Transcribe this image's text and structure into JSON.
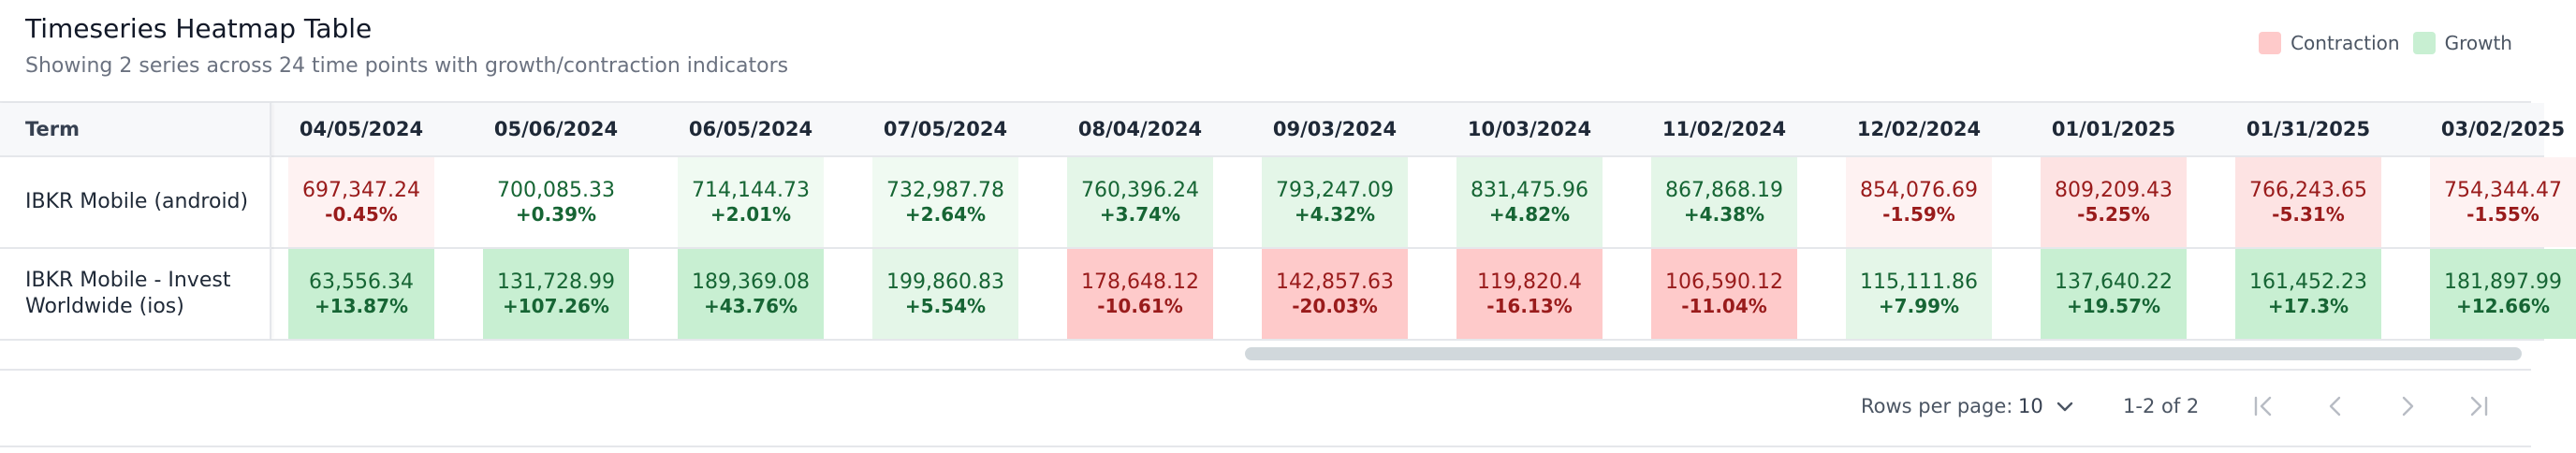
{
  "header": {
    "title": "Timeseries Heatmap Table",
    "subtitle": "Showing 2 series across 24 time points with growth/contraction indicators"
  },
  "legend": [
    {
      "label": "Contraction",
      "color": "#fecaca"
    },
    {
      "label": "Growth",
      "color": "#c8efd2"
    }
  ],
  "table": {
    "term_header": "Term",
    "dates": [
      "04/05/2024",
      "05/06/2024",
      "06/05/2024",
      "07/05/2024",
      "08/04/2024",
      "09/03/2024",
      "10/03/2024",
      "11/02/2024",
      "12/02/2024",
      "01/01/2025",
      "01/31/2025",
      "03/02/2025"
    ],
    "rows": [
      {
        "term": "IBKR Mobile (android)",
        "cells": [
          {
            "value": "697,347.24",
            "change": "-0.45%",
            "trend": "down",
            "intensity": "light"
          },
          {
            "value": "700,085.33",
            "change": "+0.39%",
            "trend": "up",
            "intensity": "none"
          },
          {
            "value": "714,144.73",
            "change": "+2.01%",
            "trend": "up",
            "intensity": "light"
          },
          {
            "value": "732,987.78",
            "change": "+2.64%",
            "trend": "up",
            "intensity": "light"
          },
          {
            "value": "760,396.24",
            "change": "+3.74%",
            "trend": "up",
            "intensity": "medium"
          },
          {
            "value": "793,247.09",
            "change": "+4.32%",
            "trend": "up",
            "intensity": "medium"
          },
          {
            "value": "831,475.96",
            "change": "+4.82%",
            "trend": "up",
            "intensity": "medium"
          },
          {
            "value": "867,868.19",
            "change": "+4.38%",
            "trend": "up",
            "intensity": "medium"
          },
          {
            "value": "854,076.69",
            "change": "-1.59%",
            "trend": "down",
            "intensity": "light"
          },
          {
            "value": "809,209.43",
            "change": "-5.25%",
            "trend": "down",
            "intensity": "medium"
          },
          {
            "value": "766,243.65",
            "change": "-5.31%",
            "trend": "down",
            "intensity": "medium"
          },
          {
            "value": "754,344.47",
            "change": "-1.55%",
            "trend": "down",
            "intensity": "light"
          }
        ]
      },
      {
        "term": "IBKR Mobile - Invest Worldwide (ios)",
        "cells": [
          {
            "value": "63,556.34",
            "change": "+13.87%",
            "trend": "up",
            "intensity": "strong"
          },
          {
            "value": "131,728.99",
            "change": "+107.26%",
            "trend": "up",
            "intensity": "strong"
          },
          {
            "value": "189,369.08",
            "change": "+43.76%",
            "trend": "up",
            "intensity": "strong"
          },
          {
            "value": "199,860.83",
            "change": "+5.54%",
            "trend": "up",
            "intensity": "medium"
          },
          {
            "value": "178,648.12",
            "change": "-10.61%",
            "trend": "down",
            "intensity": "strong"
          },
          {
            "value": "142,857.63",
            "change": "-20.03%",
            "trend": "down",
            "intensity": "strong"
          },
          {
            "value": "119,820.4",
            "change": "-16.13%",
            "trend": "down",
            "intensity": "strong"
          },
          {
            "value": "106,590.12",
            "change": "-11.04%",
            "trend": "down",
            "intensity": "strong"
          },
          {
            "value": "115,111.86",
            "change": "+7.99%",
            "trend": "up",
            "intensity": "medium"
          },
          {
            "value": "137,640.22",
            "change": "+19.57%",
            "trend": "up",
            "intensity": "strong"
          },
          {
            "value": "161,452.23",
            "change": "+17.3%",
            "trend": "up",
            "intensity": "strong"
          },
          {
            "value": "181,897.99",
            "change": "+12.66%",
            "trend": "up",
            "intensity": "strong"
          }
        ]
      }
    ]
  },
  "colors": {
    "up": {
      "none": "#ffffff",
      "light": "#f0faf2",
      "medium": "#e4f6e8",
      "strong": "#c8efd2",
      "text": "#166534"
    },
    "down": {
      "light": "#fef2f2",
      "medium": "#fde3e3",
      "strong": "#fecaca",
      "text": "#991b1b"
    }
  },
  "pagination": {
    "rows_per_page_label": "Rows per page:",
    "rows_per_page_value": "10",
    "range_label": "1-2 of 2"
  }
}
